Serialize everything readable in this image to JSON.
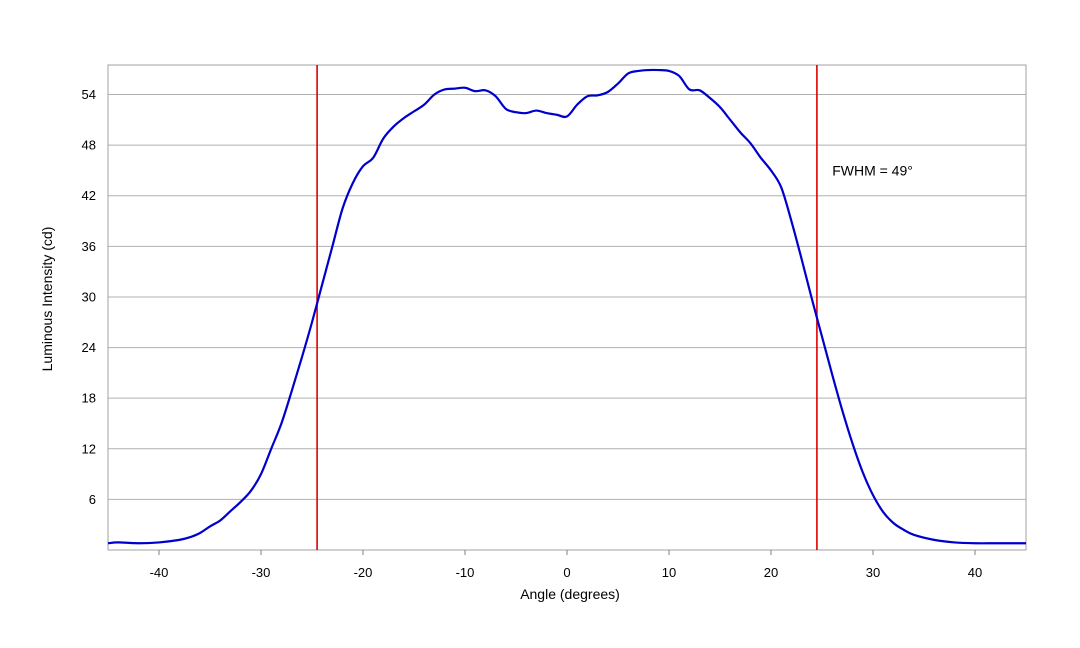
{
  "chart_data": {
    "type": "line",
    "title": "",
    "xlabel": "Angle (degrees)",
    "ylabel": "Luminous Intensity (cd)",
    "xlim": [
      -45,
      45
    ],
    "ylim": [
      0,
      57.5
    ],
    "xticks": [
      -40,
      -30,
      -20,
      -10,
      0,
      10,
      20,
      30,
      40
    ],
    "yticks": [
      6,
      12,
      18,
      24,
      30,
      36,
      42,
      48,
      54
    ],
    "grid": "horizontal",
    "legend": "none",
    "series": [
      {
        "color": "#0000cc",
        "x": [
          -45,
          -44,
          -42,
          -40,
          -38,
          -37,
          -36,
          -35,
          -34,
          -33,
          -32,
          -31,
          -30,
          -29,
          -28,
          -27,
          -26,
          -25,
          -24,
          -23,
          -22,
          -21,
          -20,
          -19,
          -18,
          -17,
          -16,
          -15,
          -14,
          -13,
          -12,
          -11,
          -10,
          -9,
          -8,
          -7,
          -6,
          -5,
          -4,
          -3,
          -2,
          -1,
          0,
          1,
          2,
          3,
          4,
          5,
          6,
          7,
          8,
          9,
          10,
          11,
          12,
          13,
          14,
          15,
          16,
          17,
          18,
          19,
          20,
          21,
          22,
          23,
          24,
          25,
          26,
          27,
          28,
          29,
          30,
          31,
          32,
          33,
          34,
          36,
          38,
          40,
          42,
          44,
          45
        ],
        "y": [
          0.8,
          0.9,
          0.8,
          0.9,
          1.2,
          1.5,
          2.0,
          2.8,
          3.5,
          4.6,
          5.7,
          7.0,
          9.0,
          12.0,
          15.0,
          18.8,
          22.8,
          27.0,
          31.5,
          36.0,
          40.5,
          43.5,
          45.5,
          46.5,
          48.8,
          50.2,
          51.2,
          52.0,
          52.8,
          54.0,
          54.6,
          54.7,
          54.8,
          54.4,
          54.5,
          53.8,
          52.3,
          51.9,
          51.8,
          52.1,
          51.8,
          51.6,
          51.4,
          52.8,
          53.8,
          53.9,
          54.3,
          55.3,
          56.5,
          56.8,
          56.9,
          56.9,
          56.8,
          56.2,
          54.6,
          54.5,
          53.6,
          52.5,
          51.0,
          49.5,
          48.2,
          46.5,
          45.0,
          43.0,
          39.0,
          34.5,
          29.8,
          25.3,
          20.8,
          16.5,
          12.6,
          9.2,
          6.5,
          4.5,
          3.2,
          2.4,
          1.8,
          1.2,
          0.9,
          0.8,
          0.8,
          0.8,
          0.8
        ]
      }
    ],
    "markers": [
      {
        "x": -24.5,
        "color": "#e00000"
      },
      {
        "x": 24.5,
        "color": "#e00000"
      }
    ],
    "annotations": [
      {
        "text": "FWHM = 49°",
        "x": 26,
        "y": 45
      }
    ]
  }
}
